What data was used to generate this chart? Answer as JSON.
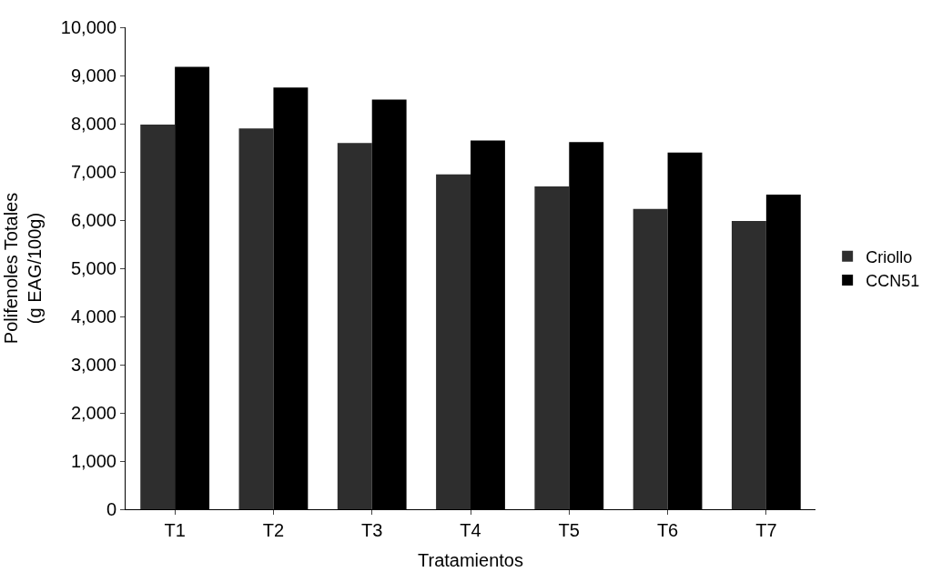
{
  "chart_data": {
    "type": "bar",
    "xlabel": "Tratamientos",
    "ylabel": "Polifenoles Totales\n(g EAG/100g)",
    "categories": [
      "T1",
      "T2",
      "T3",
      "T4",
      "T5",
      "T6",
      "T7"
    ],
    "series": [
      {
        "name": "Criollo",
        "color": "#2e2e2e",
        "values": [
          7980,
          7900,
          7600,
          6950,
          6700,
          6230,
          5980
        ]
      },
      {
        "name": "CCN51",
        "color": "#000000",
        "values": [
          9180,
          8750,
          8500,
          7650,
          7620,
          7400,
          6530
        ]
      }
    ],
    "ylim": [
      0,
      10000
    ],
    "yticks": [
      {
        "value": 0,
        "label": "0"
      },
      {
        "value": 1000,
        "label": "1,000"
      },
      {
        "value": 2000,
        "label": "2,000"
      },
      {
        "value": 3000,
        "label": "3,000"
      },
      {
        "value": 4000,
        "label": "4,000"
      },
      {
        "value": 5000,
        "label": "5,000"
      },
      {
        "value": 6000,
        "label": "6,000"
      },
      {
        "value": 7000,
        "label": "7,000"
      },
      {
        "value": 8000,
        "label": "8,000"
      },
      {
        "value": 9000,
        "label": "9,000"
      },
      {
        "value": 10000,
        "label": "10,000"
      }
    ],
    "legend": "right",
    "grid": false
  }
}
